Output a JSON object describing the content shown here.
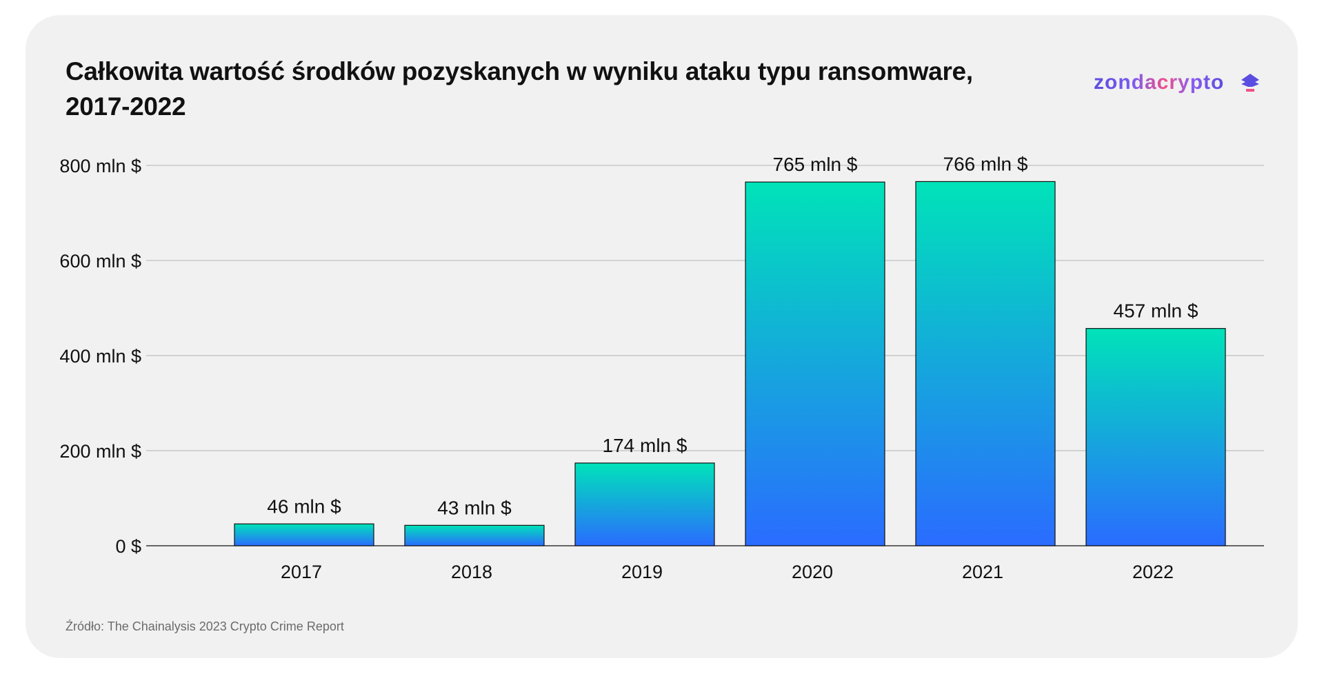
{
  "title": "Całkowita wartość środków pozyskanych w wyniku ataku typu ransomware, 2017-2022",
  "title_line1": "Całkowita wartość środków pozyskanych w wyniku ataku typu ransomware,",
  "title_line2": "2017-2022",
  "logo": "zondacrypto",
  "source": "Źródło: The Chainalysis 2023 Crypto Crime Report",
  "colors": {
    "bar_top": "#00e3b9",
    "bar_bottom": "#2a6cff",
    "grid": "#b4b4b4"
  },
  "chart_data": {
    "type": "bar",
    "title": "Całkowita wartość środków pozyskanych w wyniku ataku typu ransomware, 2017-2022",
    "categories": [
      "2017",
      "2018",
      "2019",
      "2020",
      "2021",
      "2022"
    ],
    "values": [
      46,
      43,
      174,
      765,
      766,
      457
    ],
    "data_labels": [
      "46 mln $",
      "43 mln $",
      "174 mln $",
      "765 mln $",
      "766 mln $",
      "457 mln $"
    ],
    "unit": "mln $",
    "ylim": [
      0,
      800
    ],
    "yticks": [
      0,
      200,
      400,
      600,
      800
    ],
    "ytick_labels": [
      "0 $",
      "200 mln $",
      "400 mln $",
      "600 mln $",
      "800 mln $"
    ],
    "xlabel": "",
    "ylabel": "",
    "grid": true,
    "legend": "none"
  }
}
